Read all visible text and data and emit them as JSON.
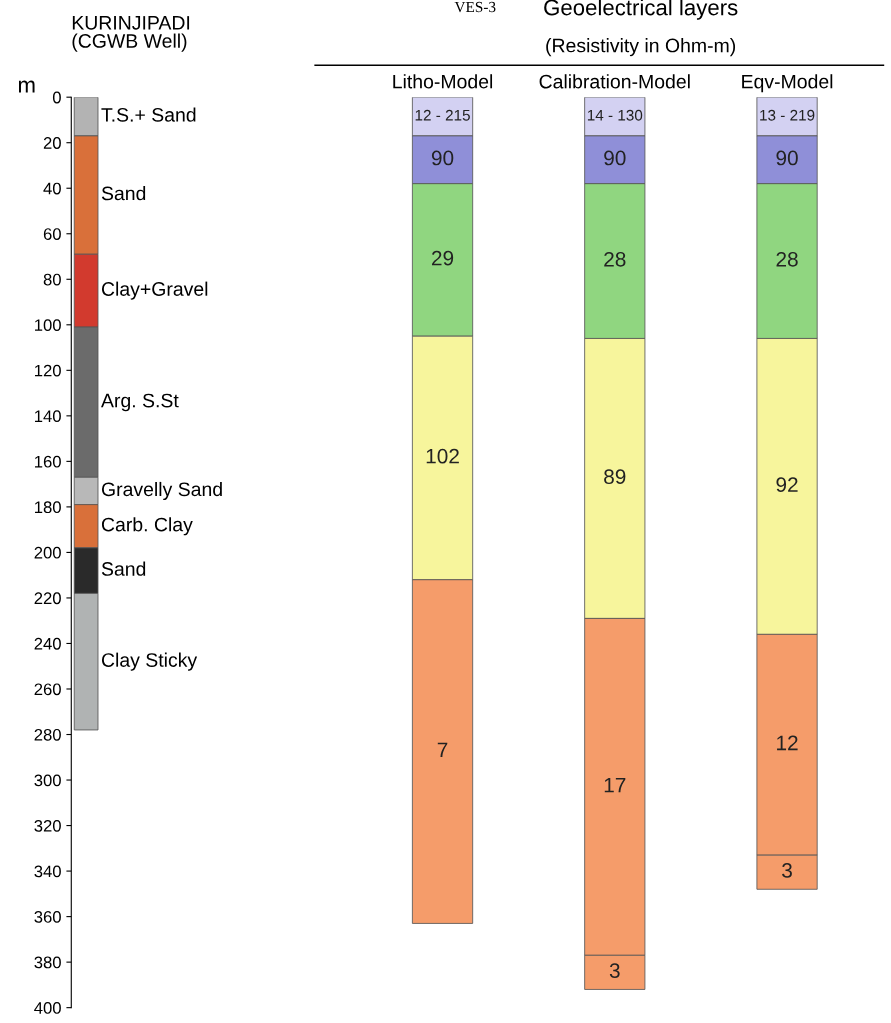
{
  "chart_data": [
    {
      "type": "bar",
      "title": "KURINJIPADI\n(CGWB Well)",
      "ylabel": "m",
      "stacked": true,
      "categories": [
        null
      ],
      "ylim": [
        400,
        0
      ],
      "yticks": [
        0,
        20,
        40,
        60,
        80,
        100,
        120,
        140,
        160,
        180,
        200,
        220,
        240,
        260,
        280,
        300,
        320,
        340,
        360,
        380,
        400
      ],
      "legend": false,
      "grid": false,
      "series": [
        {
          "name": "T.S.+ Sand",
          "color": "#b3b3b3",
          "values": [
            17
          ]
        },
        {
          "name": "Sand",
          "color": "#d9703a",
          "values": [
            52
          ]
        },
        {
          "name": "Clay+Gravel",
          "color": "#d23a2e",
          "values": [
            32
          ]
        },
        {
          "name": "Arg. S.St",
          "color": "#6b6b6b",
          "values": [
            66
          ]
        },
        {
          "name": "Gravelly Sand",
          "color": "#b8b8b8",
          "values": [
            12
          ]
        },
        {
          "name": "Carb. Clay",
          "color": "#d9703a",
          "values": [
            19
          ]
        },
        {
          "name": "Sand",
          "color": "#2a2a2a",
          "values": [
            20
          ]
        },
        {
          "name": "Clay Sticky",
          "color": "#b0b3b3",
          "values": [
            60
          ]
        }
      ]
    },
    {
      "type": "bar",
      "title": "Geoelectrical layers",
      "subtitle": "(Resistivity in Ohm-m)",
      "annotations": [
        "VES-3",
        "12 - 215",
        "14 - 130",
        "13 - 219",
        "90",
        "90",
        "90",
        "29",
        "28",
        "28",
        "102",
        "89",
        "92",
        "7",
        "17",
        "12",
        "3",
        "3"
      ],
      "stacked": true,
      "categories": [
        "Litho-Model",
        "Calibration-Model",
        "Eqv-Model"
      ],
      "ylim": [
        400,
        0
      ],
      "tick_labels": "x",
      "legend": false,
      "grid": false,
      "series": [
        {
          "color": "#d3d1f2",
          "values": [
            17,
            17,
            17
          ]
        },
        {
          "color": "#8f8fd8",
          "values": [
            21,
            21,
            21
          ]
        },
        {
          "color": "#90d680",
          "values": [
            67,
            68,
            68
          ]
        },
        {
          "color": "#f7f59c",
          "values": [
            107,
            123,
            130
          ]
        },
        {
          "color": "#f59c6a",
          "values": [
            151,
            148,
            97
          ]
        },
        {
          "color": "#f59c6a",
          "values": [
            null,
            15,
            15
          ]
        }
      ]
    }
  ]
}
